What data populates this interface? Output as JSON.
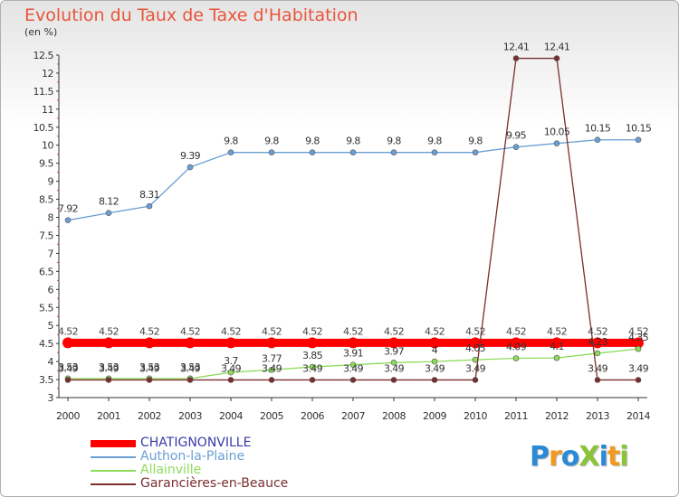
{
  "title": "Evolution du Taux de Taxe d'Habitation",
  "subtitle": "(en %)",
  "logo": "ProXiti",
  "chart_data": {
    "type": "line",
    "title": "Evolution du Taux de Taxe d'Habitation",
    "ylabel": "(en %)",
    "xlabel": "",
    "categories": [
      "2000",
      "2001",
      "2002",
      "2003",
      "2004",
      "2005",
      "2006",
      "2007",
      "2008",
      "2009",
      "2010",
      "2011",
      "2012",
      "2013",
      "2014"
    ],
    "ylim": [
      3,
      12.5
    ],
    "yticks": [
      "3",
      "3.5",
      "4",
      "4.5",
      "5",
      "5.5",
      "6",
      "6.5",
      "7",
      "7.5",
      "8",
      "8.5",
      "9",
      "9.5",
      "10",
      "10.5",
      "11",
      "11.5",
      "12",
      "12.5"
    ],
    "grid": false,
    "legend_position": "bottom-left",
    "series": [
      {
        "name": "CHATIGNONVILLE",
        "color": "#ff0000",
        "labelColor": "#444444",
        "labels": "above",
        "values": [
          4.52,
          4.52,
          4.52,
          4.52,
          4.52,
          4.52,
          4.52,
          4.52,
          4.52,
          4.52,
          4.52,
          4.52,
          4.52,
          4.52,
          4.52
        ]
      },
      {
        "name": "Authon-la-Plaine",
        "color": "#6a9ed4",
        "labelColor": "#333333",
        "labels": "above",
        "values": [
          7.92,
          8.12,
          8.31,
          9.39,
          9.8,
          9.8,
          9.8,
          9.8,
          9.8,
          9.8,
          9.8,
          9.95,
          10.05,
          10.15,
          10.15
        ]
      },
      {
        "name": "Allainville",
        "color": "#8edb5c",
        "labelColor": "#333333",
        "labels": "above",
        "values": [
          3.53,
          3.53,
          3.53,
          3.53,
          3.7,
          3.77,
          3.85,
          3.91,
          3.97,
          4,
          4.05,
          4.09,
          4.1,
          4.23,
          4.35
        ]
      },
      {
        "name": "Garancières-en-Beauce",
        "color": "#7a2e2e",
        "labelColor": "#333333",
        "labels": "above",
        "values": [
          3.49,
          3.49,
          3.49,
          3.49,
          3.49,
          3.49,
          3.49,
          3.49,
          3.49,
          3.49,
          3.49,
          12.41,
          12.41,
          3.49,
          3.49
        ]
      }
    ],
    "value_labels": {
      "CHATIGNONVILLE": [
        "4.52",
        "4.52",
        "4.52",
        "4.52",
        "4.52",
        "4.52",
        "4.52",
        "4.52",
        "4.52",
        "4.52",
        "4.52",
        "4.52",
        "4.52",
        "4.52",
        "4.52"
      ],
      "Authon-la-Plaine": [
        "7.92",
        "8.12",
        "8.31",
        "9.39",
        "9.8",
        "9.8",
        "9.8",
        "9.8",
        "9.8",
        "9.8",
        "9.8",
        "9.95",
        "10.05",
        "10.15",
        "10.15"
      ],
      "Allainville": [
        "3.53",
        "3.53",
        "3.53",
        "3.53",
        "3.7",
        "3.77",
        "3.85",
        "3.91",
        "3.97",
        "4",
        "4.05",
        "4.09",
        "4.1",
        "4.23",
        "4.35"
      ],
      "Garancières-en-Beauce": [
        "3.49",
        "3.49",
        "3.49",
        "3.49",
        "3.49",
        "3.49",
        "3.49",
        "3.49",
        "3.49",
        "3.49",
        "3.49",
        "12.41",
        "12.41",
        "3.49",
        "3.49"
      ]
    }
  }
}
